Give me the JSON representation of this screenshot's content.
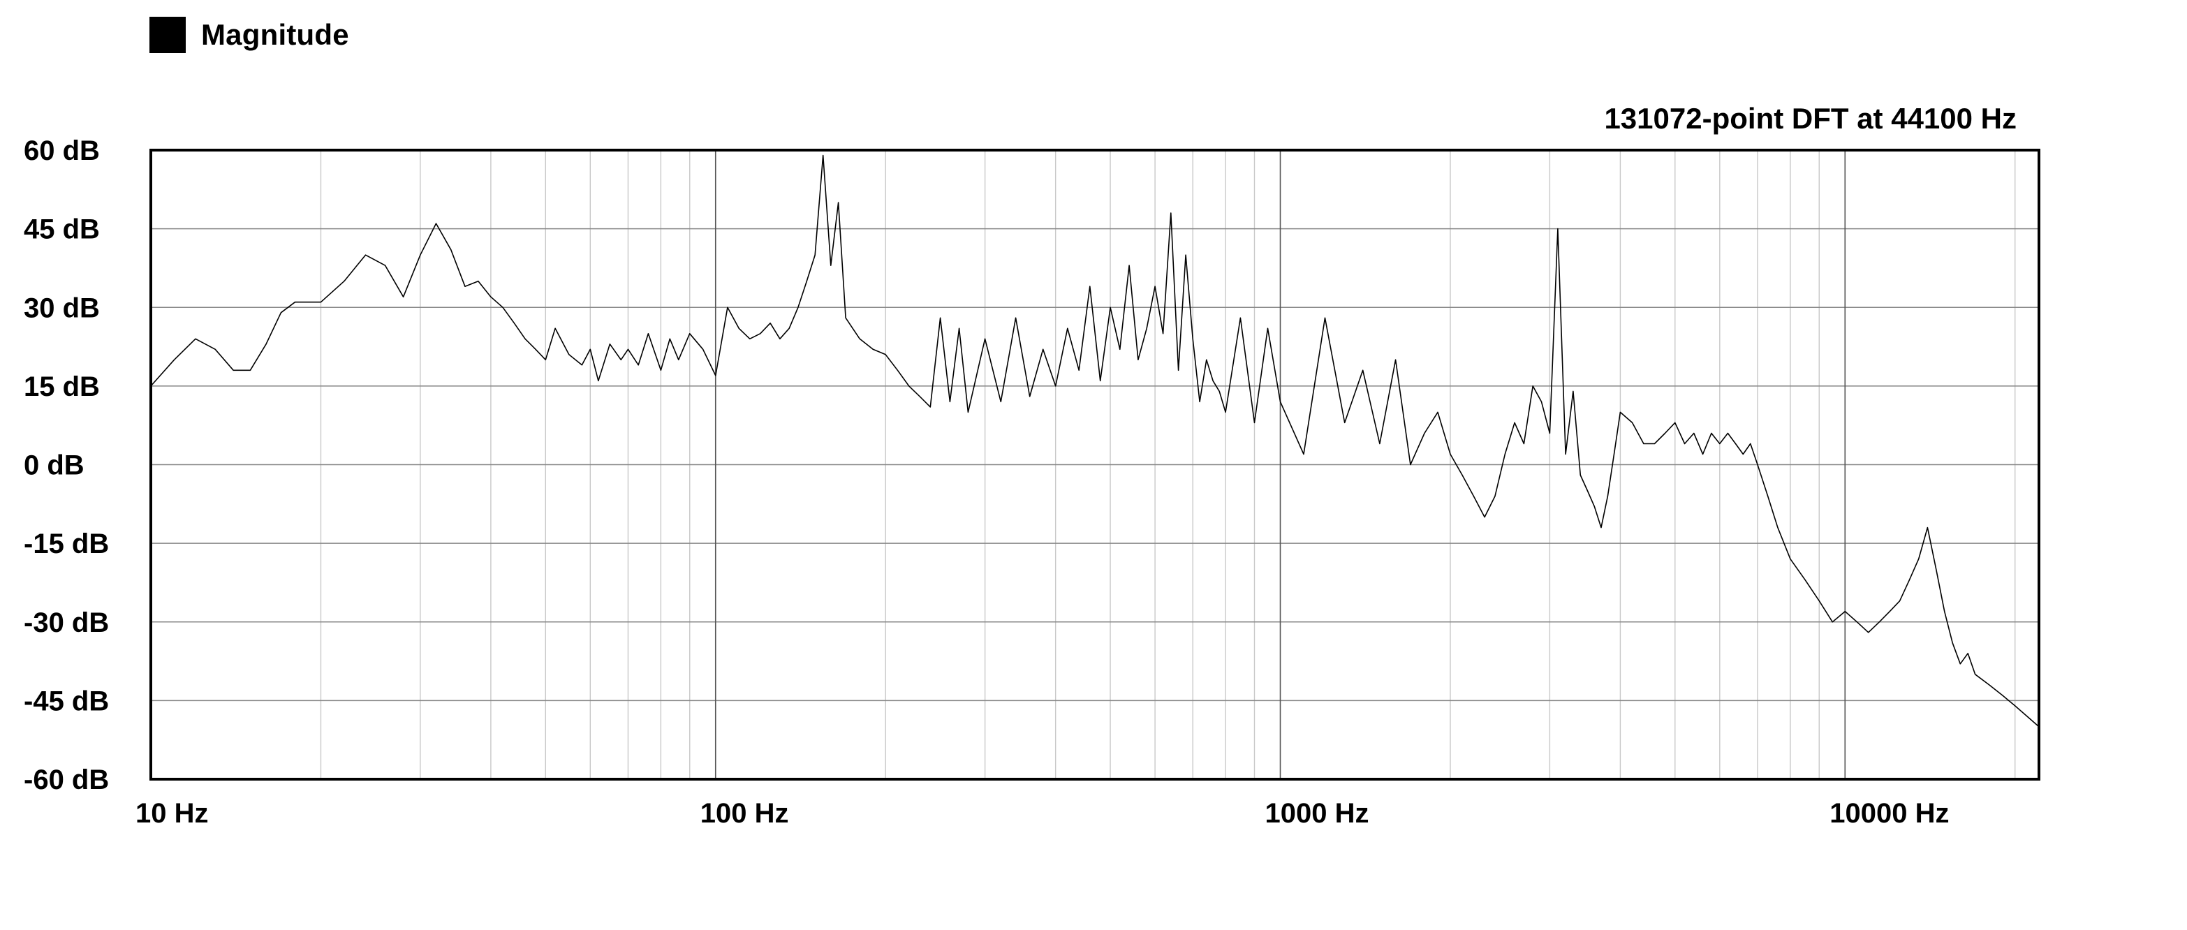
{
  "legend": {
    "label": "Magnitude",
    "swatch_color": "#000000"
  },
  "chart_data": {
    "type": "line",
    "title": "131072-point DFT at 44100 Hz",
    "xlabel": "",
    "ylabel": "",
    "x_scale": "log",
    "xlim": [
      10,
      22050
    ],
    "ylim": [
      -60,
      60
    ],
    "x_ticks": [
      {
        "value": 10,
        "label": "10 Hz"
      },
      {
        "value": 100,
        "label": "100 Hz"
      },
      {
        "value": 1000,
        "label": "1000 Hz"
      },
      {
        "value": 10000,
        "label": "10000 Hz"
      }
    ],
    "y_ticks": [
      {
        "value": 60,
        "label": "60 dB"
      },
      {
        "value": 45,
        "label": "45 dB"
      },
      {
        "value": 30,
        "label": "30 dB"
      },
      {
        "value": 15,
        "label": "15 dB"
      },
      {
        "value": 0,
        "label": "0 dB"
      },
      {
        "value": -15,
        "label": "-15 dB"
      },
      {
        "value": -30,
        "label": "-30 dB"
      },
      {
        "value": -45,
        "label": "-45 dB"
      },
      {
        "value": -60,
        "label": "-60 dB"
      }
    ],
    "grid": true,
    "line_color": "#000000",
    "series": [
      {
        "name": "Magnitude",
        "x": [
          10,
          11,
          12,
          13,
          14,
          15,
          16,
          17,
          18,
          19,
          20,
          22,
          24,
          26,
          28,
          30,
          32,
          34,
          36,
          38,
          40,
          42,
          44,
          46,
          48,
          50,
          52,
          55,
          58,
          60,
          62,
          65,
          68,
          70,
          73,
          76,
          80,
          83,
          86,
          90,
          95,
          100,
          105,
          110,
          115,
          120,
          125,
          130,
          135,
          140,
          145,
          150,
          155,
          160,
          165,
          170,
          180,
          190,
          200,
          210,
          220,
          230,
          240,
          250,
          260,
          270,
          280,
          300,
          320,
          340,
          360,
          380,
          400,
          420,
          440,
          460,
          480,
          500,
          520,
          540,
          560,
          580,
          600,
          620,
          640,
          660,
          680,
          700,
          720,
          740,
          760,
          780,
          800,
          850,
          900,
          950,
          1000,
          1100,
          1200,
          1300,
          1400,
          1500,
          1600,
          1700,
          1800,
          1900,
          2000,
          2100,
          2200,
          2300,
          2400,
          2500,
          2600,
          2700,
          2800,
          2900,
          3000,
          3100,
          3200,
          3300,
          3400,
          3500,
          3600,
          3700,
          3800,
          3900,
          4000,
          4200,
          4400,
          4600,
          4800,
          5000,
          5200,
          5400,
          5600,
          5800,
          6000,
          6200,
          6400,
          6600,
          6800,
          7000,
          7300,
          7600,
          8000,
          8500,
          9000,
          9500,
          10000,
          10500,
          11000,
          11500,
          12000,
          12500,
          13000,
          13500,
          14000,
          14500,
          15000,
          15500,
          16000,
          16500,
          17000,
          18000,
          19000,
          20000,
          21000,
          22050
        ],
        "y": [
          15,
          20,
          24,
          22,
          18,
          18,
          23,
          29,
          31,
          31,
          31,
          35,
          40,
          38,
          32,
          40,
          46,
          41,
          34,
          35,
          32,
          30,
          27,
          24,
          22,
          20,
          26,
          21,
          19,
          22,
          16,
          23,
          20,
          22,
          19,
          25,
          18,
          24,
          20,
          25,
          22,
          17,
          30,
          26,
          24,
          25,
          27,
          24,
          26,
          30,
          35,
          40,
          59,
          38,
          50,
          28,
          24,
          22,
          21,
          18,
          15,
          13,
          11,
          28,
          12,
          26,
          10,
          24,
          12,
          28,
          13,
          22,
          15,
          26,
          18,
          34,
          16,
          30,
          22,
          38,
          20,
          26,
          34,
          25,
          48,
          18,
          40,
          24,
          12,
          20,
          16,
          14,
          10,
          28,
          8,
          26,
          12,
          2,
          28,
          8,
          18,
          4,
          20,
          0,
          6,
          10,
          2,
          -2,
          -6,
          -10,
          -6,
          2,
          8,
          4,
          15,
          12,
          6,
          45,
          2,
          14,
          -2,
          -5,
          -8,
          -12,
          -6,
          2,
          10,
          8,
          4,
          4,
          6,
          8,
          4,
          6,
          2,
          6,
          4,
          6,
          4,
          2,
          4,
          0,
          -6,
          -12,
          -18,
          -22,
          -26,
          -30,
          -28,
          -30,
          -32,
          -30,
          -28,
          -26,
          -22,
          -18,
          -12,
          -20,
          -28,
          -34,
          -38,
          -36,
          -40,
          -42,
          -44,
          -46,
          -48,
          -50
        ]
      }
    ]
  }
}
